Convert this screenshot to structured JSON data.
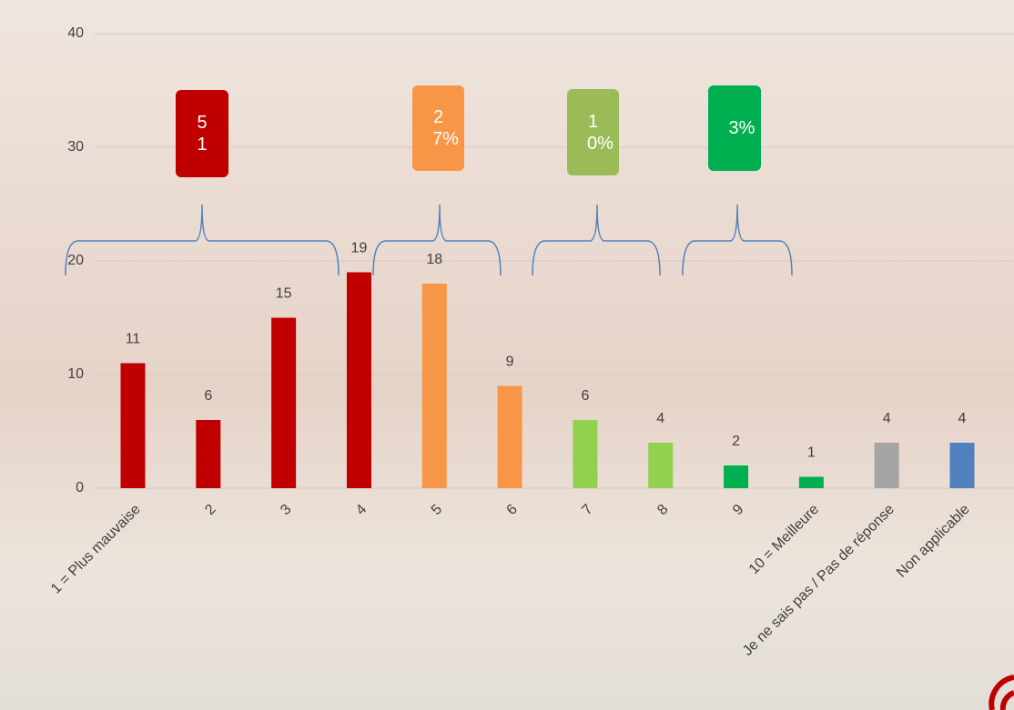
{
  "chart_data": {
    "type": "bar",
    "categories": [
      "1 = Plus mauvaise",
      "2",
      "3",
      "4",
      "5",
      "6",
      "7",
      "8",
      "9",
      "10 = Meilleure",
      "Je ne sais pas / Pas de réponse",
      "Non applicable"
    ],
    "values": [
      11,
      6,
      15,
      19,
      18,
      9,
      6,
      4,
      2,
      1,
      4,
      4
    ],
    "colors": [
      "#c00000",
      "#c00000",
      "#c00000",
      "#c00000",
      "#f79646",
      "#f79646",
      "#92d050",
      "#92d050",
      "#00b050",
      "#00b050",
      "#a5a5a5",
      "#4f81bd"
    ],
    "ylim": [
      0,
      40
    ],
    "yticks": [
      0,
      10,
      20,
      30,
      40
    ],
    "grid": true,
    "annotations": [
      {
        "text": "51",
        "color": "#c00000"
      },
      {
        "text": "27%",
        "color": "#f79646"
      },
      {
        "text": "10%",
        "color": "#9bbb59"
      },
      {
        "text": "3%",
        "color": "#00b050"
      }
    ]
  }
}
